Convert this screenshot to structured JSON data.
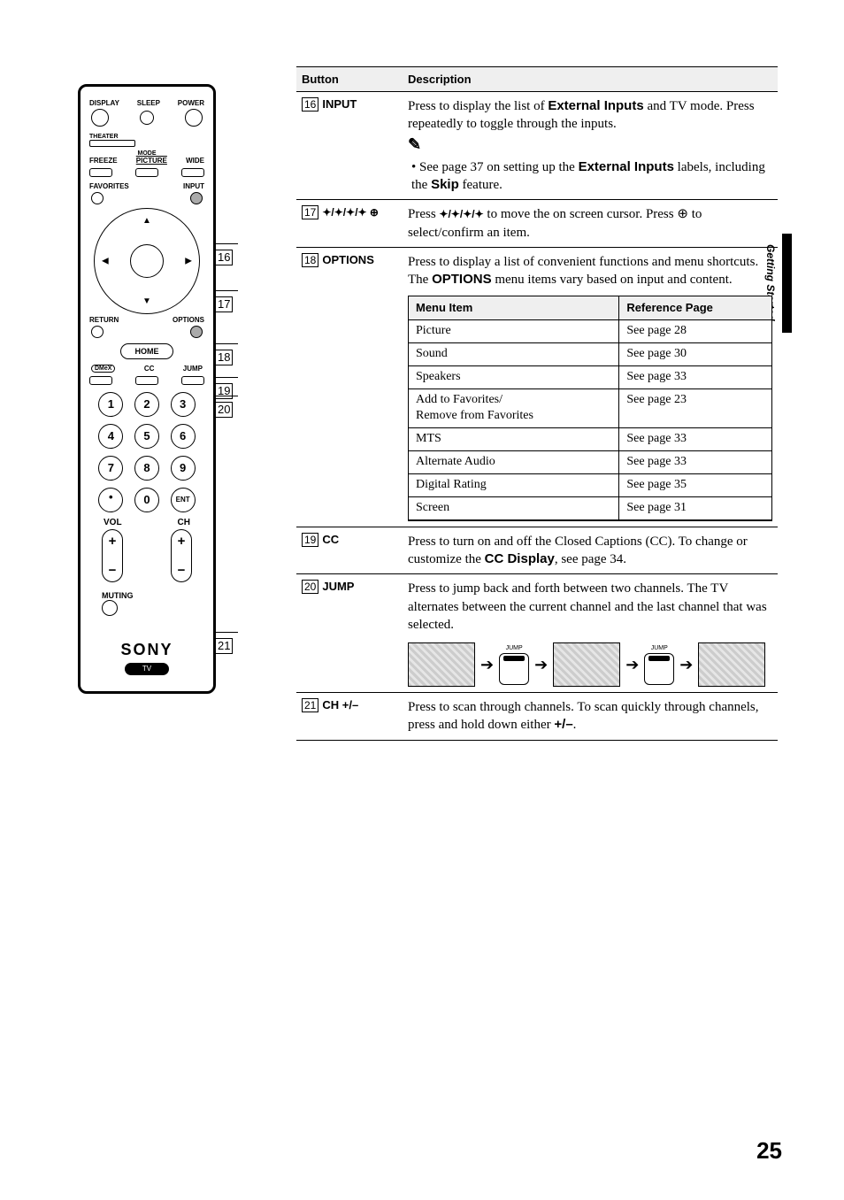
{
  "side_tab": "Getting Started",
  "page_number": "25",
  "header": {
    "button": "Button",
    "description": "Description"
  },
  "rows": {
    "input": {
      "idx": "16",
      "name": "INPUT",
      "d1a": "Press to display the list of ",
      "d1b": "External Inputs",
      "d1c": " and TV mode. Press repeatedly to toggle through the inputs.",
      "bullet_a": "See page 37 on setting up the ",
      "bullet_b": "External Inputs",
      "bullet_c": " labels, including the ",
      "bullet_d": "Skip",
      "bullet_e": " feature."
    },
    "arrows": {
      "idx": "17",
      "sym": "✦/✦/✦/✦  ⊕",
      "d1": "Press ",
      "d2": "✦/✦/✦/✦",
      "d3": " to move the on screen cursor. Press ",
      "d4": "⊕",
      "d5": " to select/confirm an item."
    },
    "options": {
      "idx": "18",
      "name": "OPTIONS",
      "d1": "Press to display a list of convenient functions and menu shortcuts. The ",
      "d2": "OPTIONS",
      "d3": " menu items vary based on input and content.",
      "menu_h1": "Menu Item",
      "menu_h2": "Reference Page",
      "items": [
        {
          "m": "Picture",
          "r": "See page 28"
        },
        {
          "m": "Sound",
          "r": "See page 30"
        },
        {
          "m": "Speakers",
          "r": "See page 33"
        },
        {
          "m": "Add to Favorites/\nRemove from Favorites",
          "r": "See page 23"
        },
        {
          "m": "MTS",
          "r": "See page 33"
        },
        {
          "m": "Alternate Audio",
          "r": "See page 33"
        },
        {
          "m": "Digital Rating",
          "r": "See page 35"
        },
        {
          "m": "Screen",
          "r": "See page 31"
        }
      ]
    },
    "cc": {
      "idx": "19",
      "name": "CC",
      "d1": "Press to turn on and off the Closed Captions (CC). To change or customize the ",
      "d2": "CC Display",
      "d3": ", see page 34."
    },
    "jump": {
      "idx": "20",
      "name": "JUMP",
      "d1": "Press to jump back and forth between two channels. The TV alternates between the current channel and the last channel that was selected.",
      "btn_label": "JUMP"
    },
    "ch": {
      "idx": "21",
      "name": "CH +/–",
      "d1": "Press to scan through channels. To scan quickly through channels, press and hold down either ",
      "d2": "+/–",
      "d3": "."
    }
  },
  "remote": {
    "top_labels": [
      "DISPLAY",
      "SLEEP",
      "POWER"
    ],
    "theater": "THEATER",
    "mode": "MODE",
    "freeze": "FREEZE",
    "picture": "PICTURE",
    "wide": "WIDE",
    "favorites": "FAVORITES",
    "input": "INPUT",
    "return": "RETURN",
    "options": "OPTIONS",
    "home": "HOME",
    "dmex": "DMeX",
    "cc": "CC",
    "jump": "JUMP",
    "vol": "VOL",
    "ch": "CH",
    "muting": "MUTING",
    "sony": "SONY",
    "tv": "TV",
    "ent": "ENT",
    "callouts": {
      "c16": "16",
      "c17": "17",
      "c18": "18",
      "c19": "19",
      "c20": "20",
      "c21": "21"
    }
  }
}
